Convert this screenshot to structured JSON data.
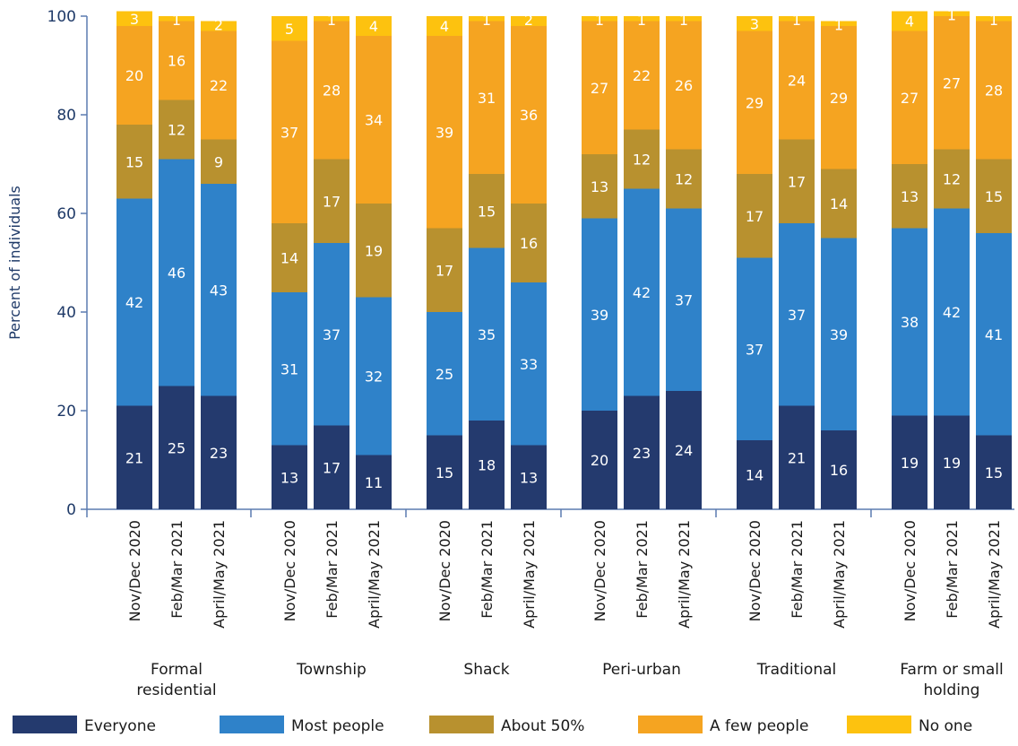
{
  "chart_data": {
    "type": "bar",
    "stacked": true,
    "ylabel": "Percent of individuals",
    "ylim": [
      0,
      100
    ],
    "yticks": [
      "0",
      "20",
      "40",
      "60",
      "80",
      "100"
    ],
    "grid": false,
    "legend_position": "bottom",
    "periods": [
      "Nov/Dec 2020",
      "Feb/Mar 2021",
      "April/May 2021"
    ],
    "groups": [
      {
        "label": [
          "Formal",
          "residential"
        ]
      },
      {
        "label": [
          "Township"
        ]
      },
      {
        "label": [
          "Shack"
        ]
      },
      {
        "label": [
          "Peri-urban"
        ]
      },
      {
        "label": [
          "Traditional"
        ]
      },
      {
        "label": [
          "Farm or small",
          "holding"
        ]
      }
    ],
    "series": [
      {
        "name": "Everyone",
        "color": "#243a6e",
        "label_color": "#ffffff",
        "values": [
          21,
          25,
          23,
          13,
          17,
          11,
          15,
          18,
          13,
          20,
          23,
          24,
          14,
          21,
          16,
          19,
          19,
          15
        ]
      },
      {
        "name": "Most people",
        "color": "#2f82c9",
        "label_color": "#ffffff",
        "values": [
          42,
          46,
          43,
          31,
          37,
          32,
          25,
          35,
          33,
          39,
          42,
          37,
          37,
          37,
          39,
          38,
          42,
          41
        ]
      },
      {
        "name": "About 50%",
        "color": "#b8912f",
        "label_color": "#ffffff",
        "values": [
          15,
          12,
          9,
          14,
          17,
          19,
          17,
          15,
          16,
          13,
          12,
          12,
          17,
          17,
          14,
          13,
          12,
          15
        ]
      },
      {
        "name": "A few people",
        "color": "#f5a421",
        "label_color": "#ffffff",
        "values": [
          20,
          16,
          22,
          37,
          28,
          34,
          39,
          31,
          36,
          27,
          22,
          26,
          29,
          24,
          29,
          27,
          27,
          28
        ]
      },
      {
        "name": "No one",
        "color": "#fdc20f",
        "label_color": "#ffffff",
        "values": [
          3,
          1,
          2,
          5,
          1,
          4,
          4,
          1,
          2,
          1,
          1,
          1,
          3,
          1,
          1,
          4,
          1,
          1
        ]
      }
    ]
  }
}
